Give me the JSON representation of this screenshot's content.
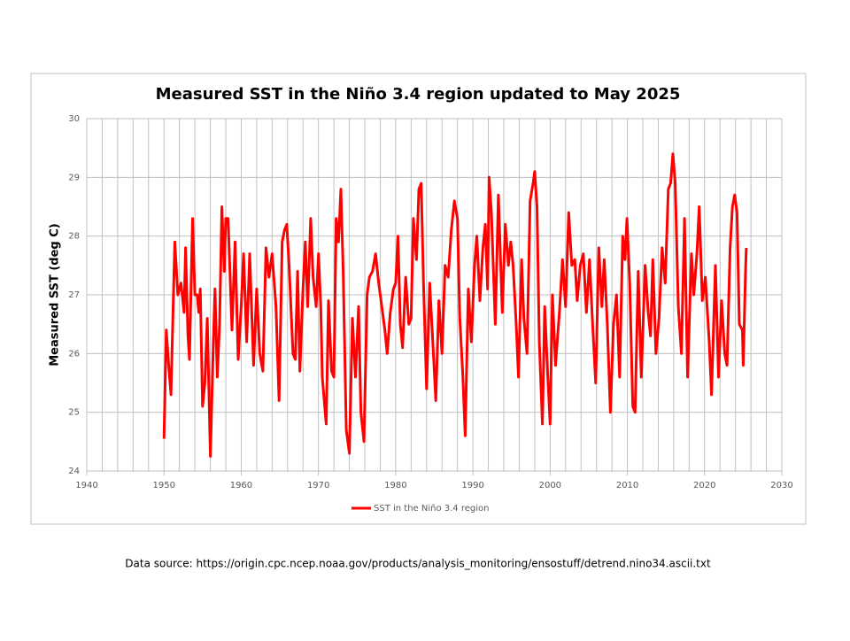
{
  "chart_data": {
    "type": "line",
    "title": "Measured SST in the Niño 3.4 region updated to May 2025",
    "ylabel": "Measured SST (deg C)",
    "footer": "Data source: https://origin.cpc.ncep.noaa.gov/products/analysis_monitoring/ensostuff/detrend.nino34.ascii.txt",
    "xlim": [
      1940,
      2030
    ],
    "xticks": [
      1940,
      1950,
      1960,
      1970,
      1980,
      1990,
      2000,
      2010,
      2020,
      2030
    ],
    "xgrid": [
      1942,
      1944,
      1946,
      1948,
      1952,
      1954,
      1956,
      1958,
      1962,
      1964,
      1966,
      1968,
      1972,
      1974,
      1976,
      1978,
      1982,
      1984,
      1986,
      1988,
      1992,
      1994,
      1996,
      1998,
      2002,
      2004,
      2006,
      2008,
      2012,
      2014,
      2016,
      2018,
      2022,
      2024,
      2026,
      2028
    ],
    "ylim": [
      24,
      30
    ],
    "yticks": [
      24,
      25,
      26,
      27,
      28,
      29,
      30
    ],
    "grid": true,
    "legend": "bottom",
    "x": [
      1950.0,
      1950.3,
      1950.6,
      1950.9,
      1951.4,
      1951.8,
      1952.2,
      1952.6,
      1952.8,
      1953.1,
      1953.3,
      1953.7,
      1954.0,
      1954.3,
      1954.5,
      1954.7,
      1955.0,
      1955.3,
      1955.6,
      1956.0,
      1956.4,
      1956.6,
      1956.9,
      1957.2,
      1957.5,
      1957.8,
      1958.0,
      1958.3,
      1958.8,
      1959.2,
      1959.6,
      1960.0,
      1960.3,
      1960.7,
      1961.1,
      1961.6,
      1962.0,
      1962.4,
      1962.8,
      1963.2,
      1963.6,
      1964.0,
      1964.5,
      1964.9,
      1965.3,
      1965.6,
      1965.9,
      1966.2,
      1966.7,
      1967.0,
      1967.3,
      1967.6,
      1968.0,
      1968.3,
      1968.6,
      1969.0,
      1969.3,
      1969.7,
      1970.0,
      1970.3,
      1970.5,
      1971.0,
      1971.3,
      1971.7,
      1972.0,
      1972.3,
      1972.6,
      1972.9,
      1973.2,
      1973.6,
      1974.0,
      1974.4,
      1974.8,
      1975.2,
      1975.5,
      1975.9,
      1976.3,
      1976.6,
      1977.0,
      1977.4,
      1977.8,
      1978.2,
      1978.6,
      1978.9,
      1979.3,
      1979.7,
      1980.0,
      1980.3,
      1980.6,
      1980.9,
      1981.3,
      1981.7,
      1982.0,
      1982.3,
      1982.7,
      1983.0,
      1983.3,
      1983.6,
      1984.0,
      1984.4,
      1984.8,
      1985.2,
      1985.6,
      1986.0,
      1986.4,
      1986.8,
      1987.2,
      1987.6,
      1988.0,
      1988.3,
      1988.7,
      1989.0,
      1989.4,
      1989.8,
      1990.2,
      1990.5,
      1990.9,
      1991.3,
      1991.6,
      1991.9,
      1992.1,
      1992.4,
      1992.9,
      1993.3,
      1993.8,
      1994.2,
      1994.6,
      1994.9,
      1995.2,
      1995.6,
      1995.9,
      1996.3,
      1996.6,
      1997.0,
      1997.4,
      1997.8,
      1998.0,
      1998.3,
      1998.6,
      1999.0,
      1999.3,
      1999.7,
      2000.0,
      2000.3,
      2000.7,
      2001.2,
      2001.6,
      2002.0,
      2002.4,
      2002.8,
      2003.2,
      2003.5,
      2003.9,
      2004.3,
      2004.7,
      2005.1,
      2005.5,
      2005.9,
      2006.3,
      2006.7,
      2007.0,
      2007.4,
      2007.8,
      2008.2,
      2008.6,
      2009.0,
      2009.4,
      2009.7,
      2009.95,
      2010.3,
      2010.7,
      2011.0,
      2011.4,
      2011.8,
      2012.3,
      2012.7,
      2013.0,
      2013.3,
      2013.7,
      2014.1,
      2014.5,
      2014.9,
      2015.3,
      2015.6,
      2015.9,
      2016.2,
      2016.6,
      2017.0,
      2017.4,
      2017.8,
      2018.3,
      2018.6,
      2019.0,
      2019.3,
      2019.7,
      2020.1,
      2020.6,
      2020.9,
      2021.4,
      2021.8,
      2022.2,
      2022.6,
      2022.9,
      2023.3,
      2023.6,
      2023.9,
      2024.2,
      2024.5,
      2024.9,
      2025.0,
      2025.3,
      2025.4
    ],
    "series": [
      {
        "name": "SST in the Niño 3.4 region",
        "color": "#ff0000",
        "values": [
          24.55,
          26.4,
          25.8,
          25.3,
          27.9,
          27.0,
          27.2,
          26.7,
          27.8,
          26.3,
          25.9,
          28.3,
          27.0,
          27.0,
          26.7,
          27.1,
          25.1,
          25.5,
          26.6,
          24.25,
          26.2,
          27.1,
          25.6,
          26.5,
          28.5,
          27.4,
          28.3,
          28.3,
          26.4,
          27.9,
          25.9,
          26.8,
          27.7,
          26.2,
          27.7,
          25.8,
          27.1,
          26.0,
          25.7,
          27.8,
          27.3,
          27.7,
          26.8,
          25.2,
          27.9,
          28.1,
          28.2,
          27.5,
          26.0,
          25.9,
          27.4,
          25.7,
          27.1,
          27.9,
          26.8,
          28.3,
          27.3,
          26.8,
          27.7,
          26.8,
          25.6,
          24.8,
          26.9,
          25.7,
          25.6,
          28.3,
          27.9,
          28.8,
          27.4,
          24.7,
          24.3,
          26.6,
          25.6,
          26.8,
          25.0,
          24.5,
          27.0,
          27.3,
          27.4,
          27.7,
          27.2,
          26.8,
          26.4,
          26.0,
          26.7,
          27.1,
          27.2,
          28.0,
          26.5,
          26.1,
          27.3,
          26.5,
          26.6,
          28.3,
          27.6,
          28.8,
          28.9,
          27.2,
          25.4,
          27.2,
          26.2,
          25.2,
          26.9,
          26.0,
          27.5,
          27.3,
          28.1,
          28.6,
          28.3,
          26.6,
          25.6,
          24.6,
          27.1,
          26.2,
          27.5,
          28.0,
          26.9,
          27.8,
          28.2,
          27.1,
          29.0,
          28.4,
          26.5,
          28.7,
          26.7,
          28.2,
          27.5,
          27.9,
          27.5,
          26.5,
          25.6,
          27.6,
          26.6,
          26.0,
          28.6,
          28.9,
          29.1,
          28.5,
          26.2,
          24.8,
          26.8,
          25.6,
          24.8,
          27.0,
          25.8,
          26.7,
          27.6,
          26.8,
          28.4,
          27.5,
          27.6,
          26.9,
          27.5,
          27.7,
          26.7,
          27.6,
          26.5,
          25.5,
          27.8,
          26.8,
          27.6,
          26.5,
          25.0,
          26.5,
          27.0,
          25.6,
          28.0,
          27.6,
          28.3,
          27.2,
          25.1,
          25.0,
          27.4,
          25.6,
          27.5,
          26.7,
          26.3,
          27.6,
          26.0,
          26.6,
          27.8,
          27.2,
          28.8,
          28.9,
          29.4,
          28.9,
          26.8,
          26.0,
          28.3,
          25.6,
          27.7,
          27.0,
          27.7,
          28.5,
          26.9,
          27.3,
          26.2,
          25.3,
          27.5,
          25.6,
          26.9,
          26.0,
          25.8,
          27.8,
          28.5,
          28.7,
          28.4,
          26.5,
          26.4,
          25.8,
          27.4,
          27.8
        ]
      }
    ]
  }
}
